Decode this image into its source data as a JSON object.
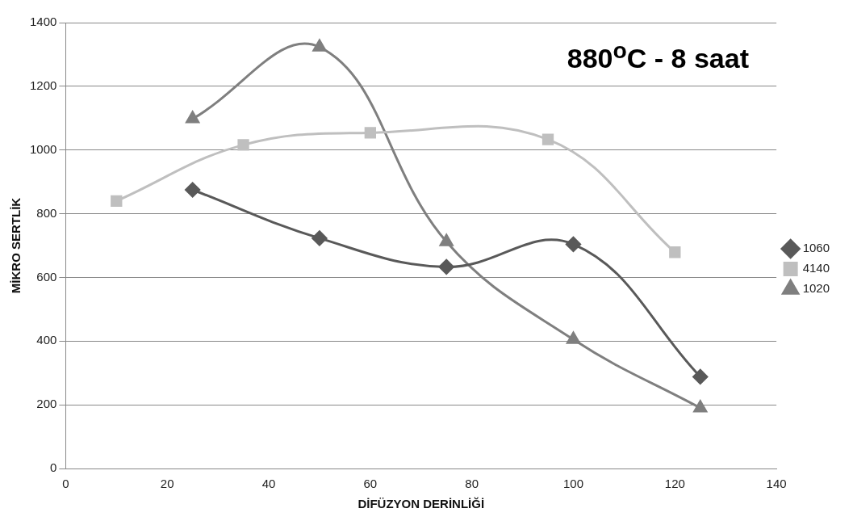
{
  "chart_data": {
    "type": "line",
    "title": "880$^{o}$C - 8 saat",
    "xlabel": "DİFÜZYON DERİNLİĞİ",
    "ylabel": "MİKRO SERTLİK",
    "xlim": [
      0,
      140
    ],
    "xticks": [
      0,
      20,
      40,
      60,
      80,
      100,
      120,
      140
    ],
    "ylim": [
      0,
      1400
    ],
    "yticks": [
      0,
      200,
      400,
      600,
      800,
      1000,
      1200,
      1400
    ],
    "grid": "y",
    "legend": "right",
    "series": [
      {
        "name": "1060",
        "color": "#595959",
        "marker": "diamond",
        "x": [
          25,
          50,
          75,
          100,
          125
        ],
        "values": [
          875,
          723,
          633,
          704,
          288
        ]
      },
      {
        "name": "4140",
        "color": "#bfbfbf",
        "marker": "square",
        "x": [
          10,
          35,
          60,
          95,
          120
        ],
        "values": [
          840,
          1016,
          1054,
          1033,
          679
        ]
      },
      {
        "name": "1020",
        "color": "#7f7f7f",
        "marker": "triangle",
        "x": [
          25,
          50,
          75,
          100,
          125
        ],
        "values": [
          1098,
          1323,
          712,
          405,
          190
        ]
      }
    ]
  }
}
